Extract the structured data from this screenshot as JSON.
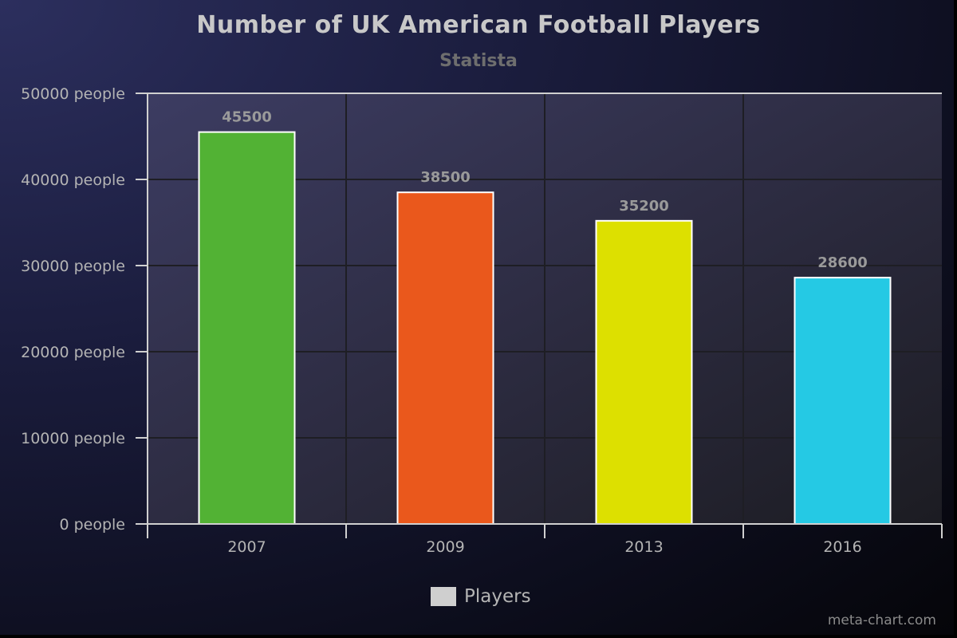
{
  "chart_data": {
    "type": "bar",
    "title": "Number of UK American Football Players",
    "subtitle": "Statista",
    "categories": [
      "2007",
      "2009",
      "2013",
      "2016"
    ],
    "series": [
      {
        "name": "Players",
        "values": [
          45500,
          38500,
          35200,
          28600
        ],
        "colors": [
          "#52b234",
          "#ea581c",
          "#dde000",
          "#25c9e4"
        ]
      }
    ],
    "data_labels": [
      "45500",
      "38500",
      "35200",
      "28600"
    ],
    "ylim": [
      0,
      50000
    ],
    "yticks": [
      0,
      10000,
      20000,
      30000,
      40000,
      50000
    ],
    "ytick_labels": [
      "0 people",
      "10000 people",
      "20000 people",
      "30000 people",
      "40000 people",
      "50000 people"
    ],
    "xlabel": "",
    "ylabel": "",
    "grid": true,
    "legend_position": "bottom",
    "legend_color": "#cfcfcf"
  },
  "credit": "meta-chart.com"
}
